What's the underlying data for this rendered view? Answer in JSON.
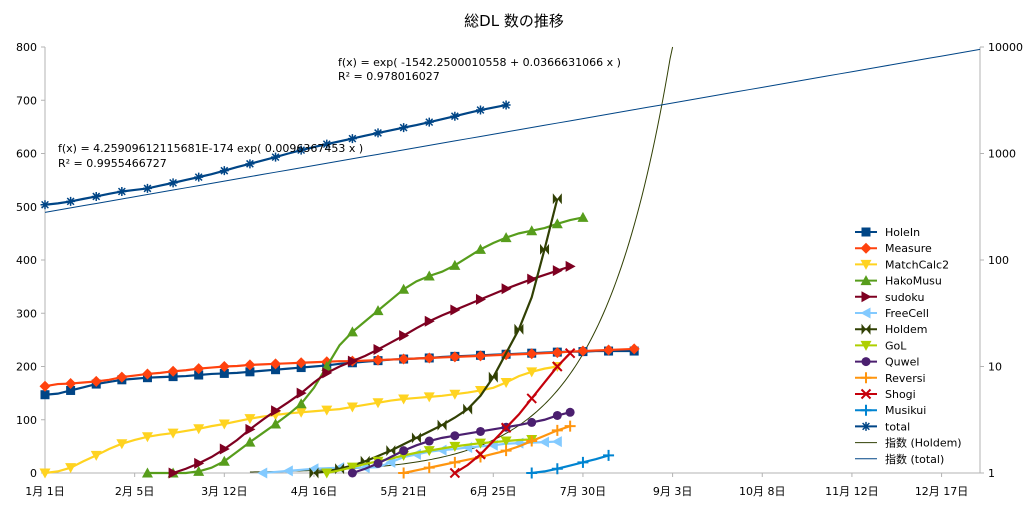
{
  "chart_data": {
    "type": "line",
    "title": "総DL 数の推移",
    "xlabel": "",
    "ylabel": "",
    "x_ticks": [
      "1月1日",
      "2月5日",
      "3月12日",
      "4月16日",
      "5月21日",
      "6月25日",
      "7月30日",
      "9月3日",
      "10月8日",
      "11月12日",
      "12月17日"
    ],
    "xlim_days": [
      0,
      365
    ],
    "ylim_left": [
      0,
      800
    ],
    "y_ticks_left": [
      "0",
      "100",
      "200",
      "300",
      "400",
      "500",
      "600",
      "700",
      "800"
    ],
    "ylim_right_log": [
      1,
      10000
    ],
    "y_ticks_right": [
      "1",
      "10",
      "100",
      "1000",
      "10000"
    ],
    "grid": false,
    "legend_position": "right",
    "sample_days": [
      0,
      5,
      10,
      15,
      20,
      25,
      30,
      35,
      40,
      45,
      50,
      55,
      60,
      65,
      70,
      75,
      80,
      85,
      90,
      95,
      100,
      105,
      110,
      115,
      120,
      125,
      130,
      135,
      140,
      145,
      150,
      155,
      160,
      165,
      170,
      175,
      180,
      185,
      190,
      195,
      200,
      205,
      210,
      215,
      220,
      225,
      230
    ],
    "series": [
      {
        "name": "HoleIn",
        "color": "#004586",
        "marker": "square",
        "axis": "left",
        "start": 0,
        "values": [
          147,
          149,
          155,
          161,
          167,
          171,
          175,
          177,
          179,
          180,
          181,
          182,
          184,
          186,
          187,
          188,
          190,
          192,
          194,
          196,
          198,
          200,
          202,
          205,
          207,
          209,
          211,
          213,
          214,
          215,
          216,
          218,
          219,
          220,
          221,
          222,
          223,
          224,
          225,
          226,
          227,
          228,
          228,
          229,
          229,
          229,
          229
        ]
      },
      {
        "name": "Measure",
        "color": "#ff420e",
        "marker": "diamond",
        "axis": "left",
        "start": 0,
        "values": [
          163,
          167,
          168,
          170,
          172,
          175,
          180,
          183,
          186,
          188,
          191,
          193,
          196,
          198,
          200,
          201,
          203,
          204,
          205,
          206,
          207,
          208,
          209,
          210,
          210,
          211,
          212,
          213,
          214,
          215,
          216,
          217,
          218,
          219,
          220,
          221,
          222,
          223,
          224,
          225,
          226,
          228,
          229,
          230,
          231,
          232,
          233
        ]
      },
      {
        "name": "MatchCalc2",
        "color": "#ffd320",
        "marker": "triangle-down",
        "axis": "left",
        "start": 0,
        "values": [
          0,
          3,
          10,
          22,
          33,
          45,
          55,
          62,
          68,
          72,
          75,
          79,
          83,
          88,
          92,
          97,
          102,
          106,
          109,
          112,
          114,
          116,
          118,
          120,
          124,
          128,
          132,
          136,
          139,
          141,
          143,
          145,
          148,
          151,
          155,
          160,
          170,
          182,
          190,
          196,
          200
        ]
      },
      {
        "name": "HakoMusu",
        "color": "#579d1c",
        "marker": "triangle",
        "axis": "left",
        "start": 40,
        "values": [
          0,
          0,
          0,
          0,
          3,
          10,
          22,
          40,
          58,
          75,
          92,
          110,
          130,
          160,
          200,
          240,
          265,
          285,
          305,
          325,
          345,
          360,
          370,
          378,
          390,
          405,
          420,
          432,
          442,
          450,
          455,
          460,
          468,
          475,
          480
        ]
      },
      {
        "name": "sudoku",
        "color": "#7e0021",
        "marker": "triangle-right",
        "axis": "left",
        "start": 50,
        "values": [
          0,
          8,
          18,
          30,
          45,
          62,
          82,
          100,
          117,
          133,
          150,
          170,
          188,
          200,
          210,
          220,
          232,
          245,
          258,
          272,
          285,
          296,
          306,
          316,
          326,
          336,
          346,
          355,
          364,
          372,
          380,
          388
        ]
      },
      {
        "name": "FreeCell",
        "color": "#83caff",
        "marker": "triangle-left",
        "axis": "left",
        "start": 85,
        "values": [
          0,
          2,
          4,
          6,
          8,
          9,
          10,
          10,
          10,
          11,
          20,
          30,
          35,
          40,
          43,
          45,
          48,
          50,
          52,
          55,
          56,
          57,
          58,
          59
        ]
      },
      {
        "name": "Holdem",
        "color": "#314004",
        "marker": "bowtie",
        "axis": "left",
        "start": 105,
        "values": [
          0,
          3,
          8,
          14,
          22,
          32,
          42,
          54,
          66,
          78,
          90,
          104,
          120,
          145,
          180,
          225,
          270,
          330,
          420,
          515
        ]
      },
      {
        "name": "GoL",
        "color": "#aecf00",
        "marker": "triangle-down",
        "axis": "left",
        "start": 110,
        "values": [
          0,
          5,
          11,
          17,
          22,
          27,
          33,
          38,
          42,
          46,
          50,
          53,
          56,
          58,
          60,
          62,
          63
        ]
      },
      {
        "name": "Quwel",
        "color": "#4b1f6f",
        "marker": "circle",
        "axis": "left",
        "start": 120,
        "values": [
          0,
          8,
          18,
          30,
          42,
          52,
          60,
          66,
          70,
          74,
          78,
          82,
          86,
          90,
          95,
          100,
          108,
          114
        ]
      },
      {
        "name": "Reversi",
        "color": "#ff950e",
        "marker": "plus",
        "axis": "left",
        "start": 140,
        "values": [
          0,
          5,
          10,
          15,
          20,
          25,
          30,
          36,
          42,
          50,
          60,
          70,
          80,
          88
        ]
      },
      {
        "name": "Shogi",
        "color": "#c5000b",
        "marker": "x",
        "axis": "left",
        "start": 160,
        "values": [
          0,
          15,
          35,
          60,
          85,
          110,
          140,
          170,
          200,
          225
        ]
      },
      {
        "name": "Musikui",
        "color": "#0084d1",
        "marker": "plus",
        "axis": "left",
        "start": 190,
        "values": [
          0,
          3,
          8,
          14,
          20,
          26,
          33
        ]
      },
      {
        "name": "total",
        "color": "#004586",
        "marker": "star",
        "axis": "right-log",
        "start": 0,
        "values": [
          330,
          340,
          355,
          375,
          395,
          418,
          440,
          455,
          470,
          500,
          530,
          565,
          600,
          640,
          690,
          745,
          800,
          860,
          925,
          1000,
          1075,
          1150,
          1225,
          1300,
          1380,
          1470,
          1560,
          1650,
          1750,
          1850,
          1970,
          2100,
          2240,
          2400,
          2560,
          2700,
          2850
        ]
      },
      {
        "name": "指数 (Holdem)",
        "color": "#314004",
        "marker": "none",
        "axis": "left",
        "start": 0,
        "trendline": {
          "kind": "exp",
          "a_log": -1542.2500010558,
          "b": 0.0366631066,
          "x_offset_day": 42003
        }
      },
      {
        "name": "指数 (total)",
        "color": "#004586",
        "marker": "none",
        "axis": "right-log",
        "start": 0,
        "trendline": {
          "kind": "exp",
          "value_at_day0": 280,
          "value_at_day365": 9500
        }
      }
    ],
    "annotations": [
      {
        "text": "f(x) = exp( -1542.2500010558 + 0.0366631066 x )",
        "series": "指数 (Holdem)"
      },
      {
        "text": "R² = 0.978016027",
        "series": "指数 (Holdem)"
      },
      {
        "text": "f(x) = 4.25909612115681E-174 exp( 0.0096367453 x )",
        "series": "指数 (total)"
      },
      {
        "text": "R² = 0.9955466727",
        "series": "指数 (total)"
      }
    ]
  }
}
